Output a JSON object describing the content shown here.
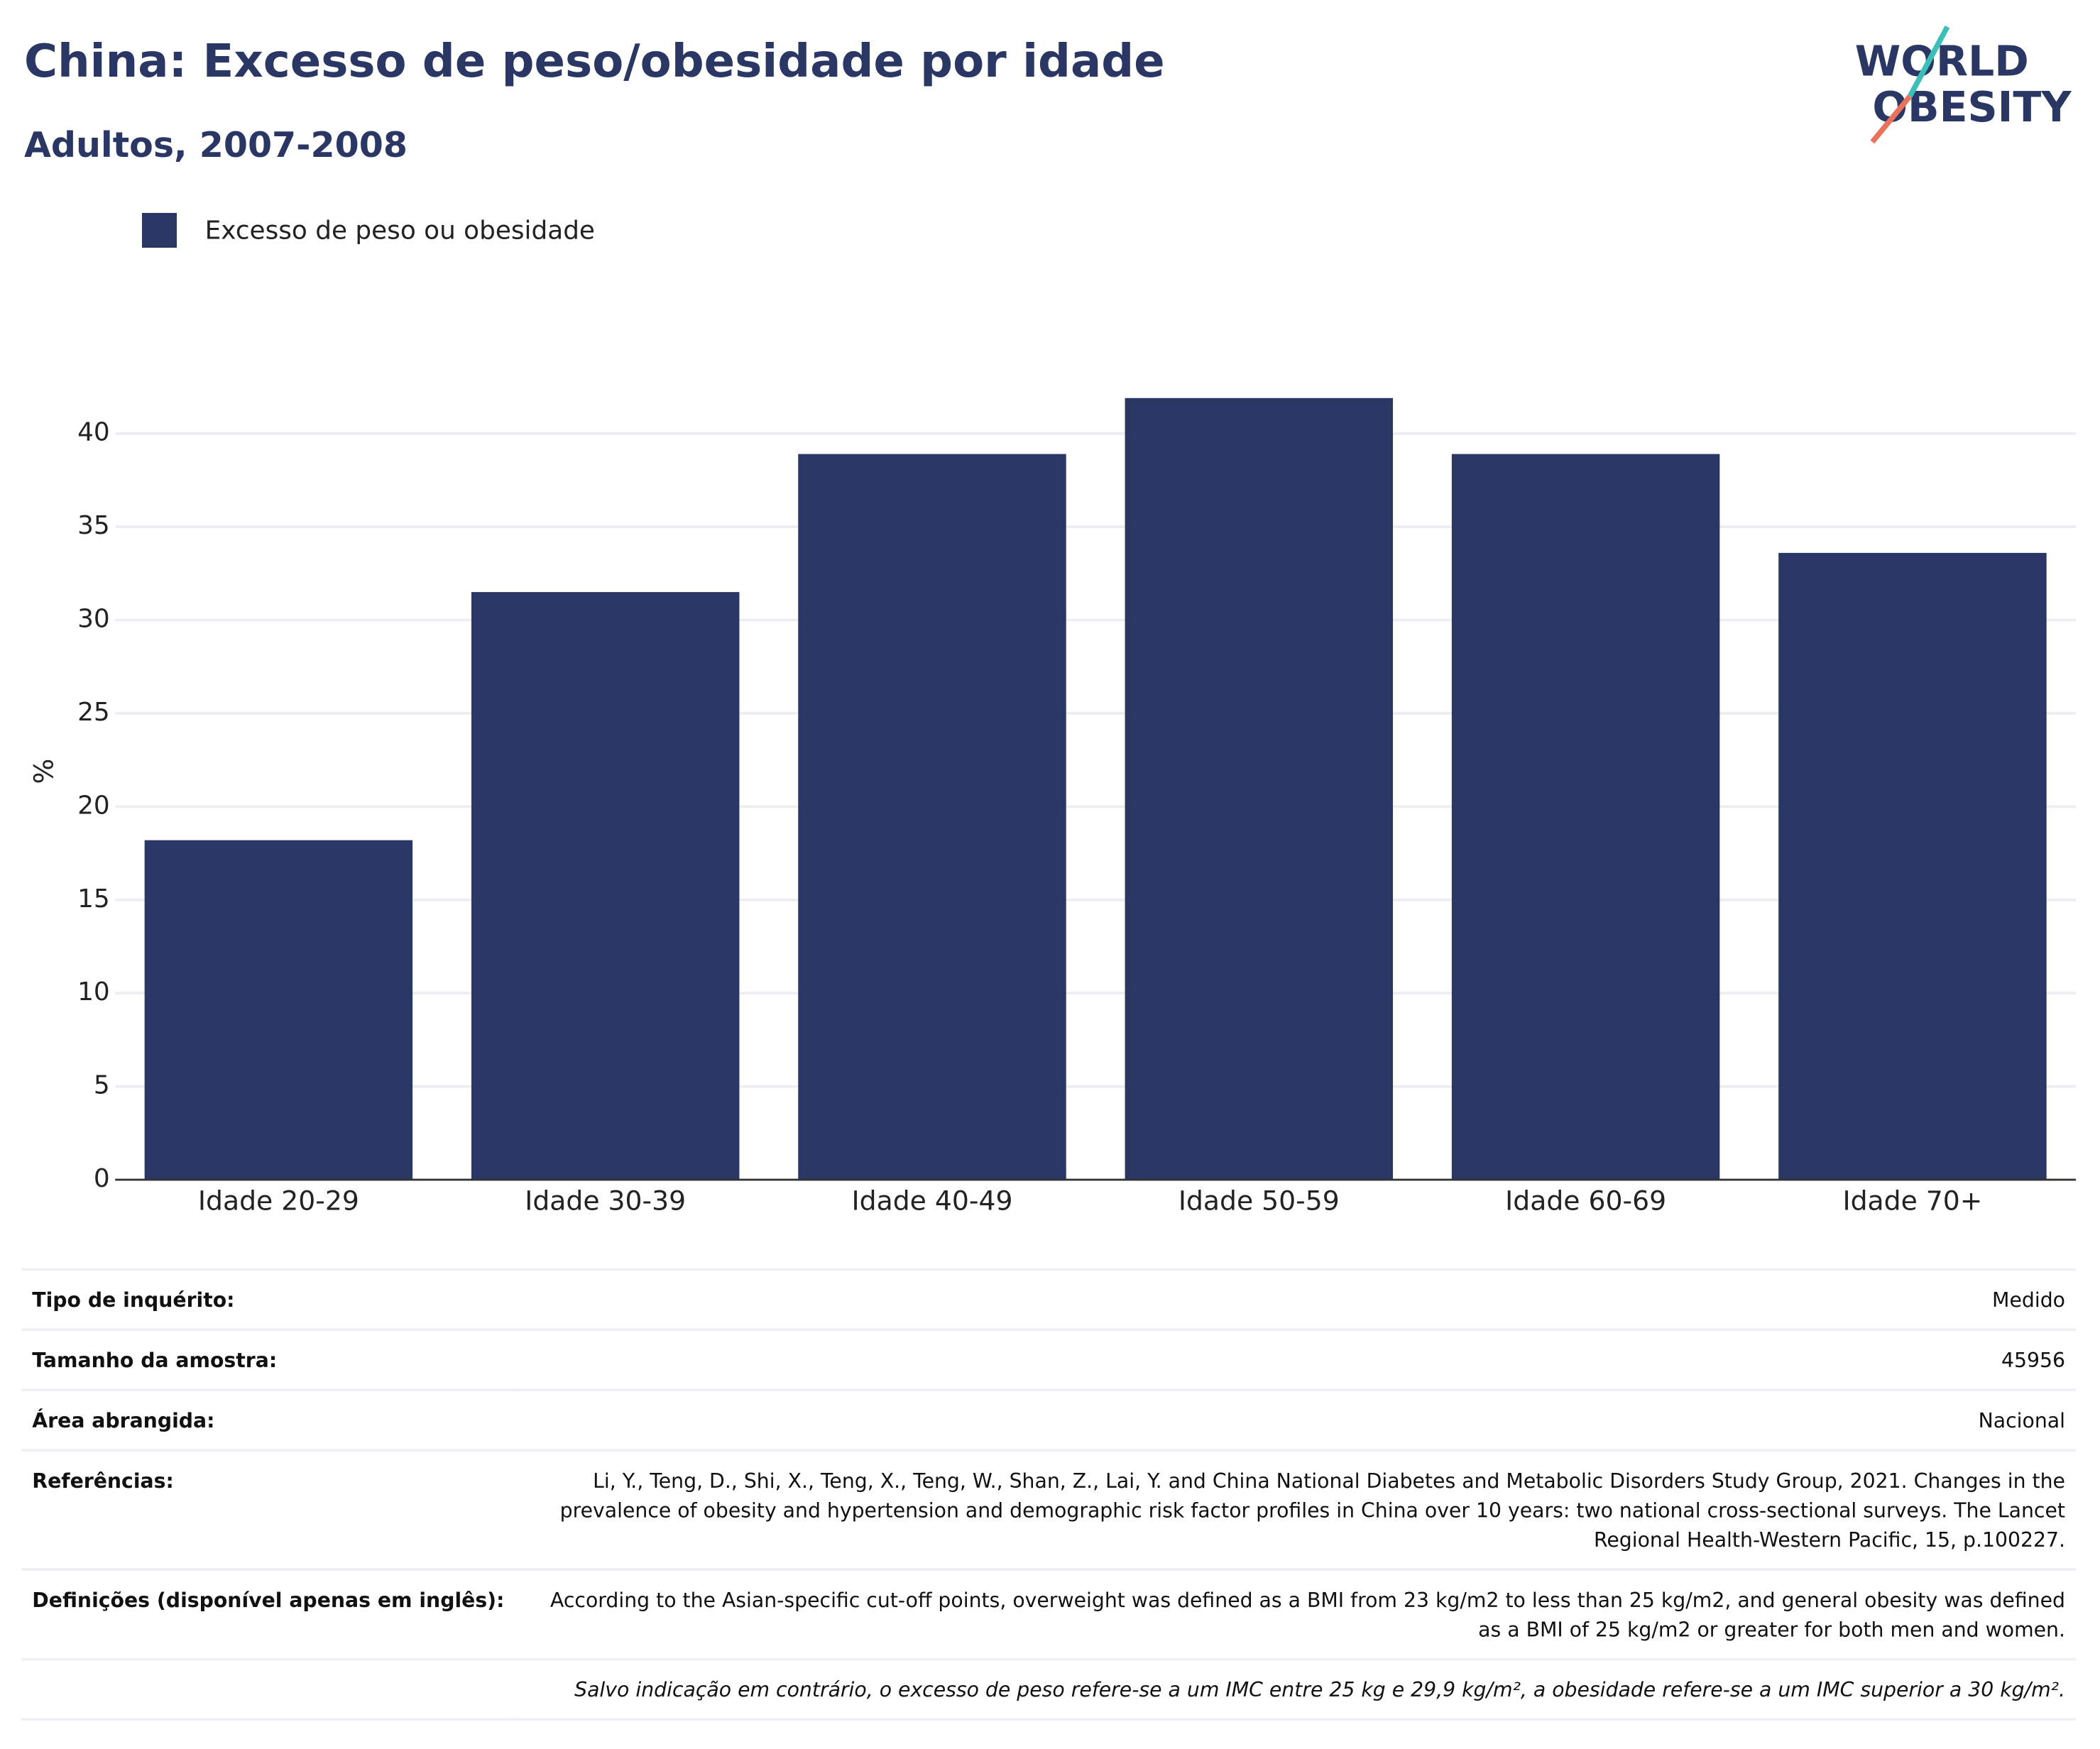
{
  "chart_data": {
    "type": "bar",
    "title": "China: Excesso de peso/obesidade por idade",
    "subtitle": "Adultos, 2007-2008",
    "logo": [
      "WORLD",
      "OBESITY"
    ],
    "ylabel": "%",
    "categories": [
      "Idade 20-29",
      "Idade 30-39",
      "Idade 40-49",
      "Idade 50-59",
      "Idade 60-69",
      "Idade 70+"
    ],
    "series": [
      {
        "name": "Excesso de peso ou obesidade",
        "color": "#2a3663",
        "values": [
          18.2,
          31.5,
          38.9,
          41.9,
          38.9,
          33.6
        ]
      }
    ],
    "ylim": [
      0,
      44
    ],
    "yticks": [
      0,
      5,
      10,
      15,
      20,
      25,
      30,
      35,
      40
    ],
    "grid": true,
    "legend": "top-left"
  },
  "table": {
    "rows": [
      [
        "Tipo de inquérito:",
        "Medido"
      ],
      [
        "Tamanho da amostra:",
        "45956"
      ],
      [
        "Área abrangida:",
        "Nacional"
      ],
      [
        "Referências:",
        "Li, Y., Teng, D., Shi, X., Teng, X., Teng, W., Shan, Z., Lai, Y. and China National Diabetes and Metabolic Disorders Study Group, 2021. Changes in the prevalence of obesity and hypertension and demographic risk factor profiles in China over 10 years: two national cross-sectional surveys. The Lancet Regional Health-Western Pacific, 15, p.100227."
      ],
      [
        "Definições (disponível apenas em inglês):",
        "According to the Asian-specific cut-off points, overweight was defined as a BMI from 23 kg/m2 to less than 25 kg/m2, and general obesity was defined as a BMI of 25 kg/m2 or greater for both men and women."
      ]
    ],
    "note": "Salvo indicação em contrário, o excesso de peso refere-se a um IMC entre 25 kg e 29,9 kg/m², a obesidade refere-se a um IMC superior a 30 kg/m²."
  }
}
